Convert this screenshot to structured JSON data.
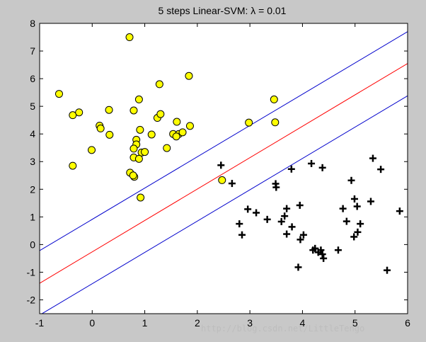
{
  "chart_data": {
    "type": "scatter",
    "title": "5 steps Linear-SVM: λ = 0.01",
    "xlabel": "",
    "ylabel": "",
    "xlim": [
      -1,
      6
    ],
    "ylim": [
      -2.5,
      8
    ],
    "x_ticks": [
      "-1",
      "0",
      "1",
      "2",
      "3",
      "4",
      "5",
      "6"
    ],
    "y_ticks": [
      "-2",
      "-1",
      "0",
      "1",
      "2",
      "3",
      "4",
      "5",
      "6",
      "7",
      "8"
    ],
    "grid": false,
    "legend": "none",
    "colors": {
      "figure_bg": "#c8c8c8",
      "axes_bg": "#ffffff",
      "circle_fill": "#ffff00",
      "circle_edge": "#000000",
      "plus": "#000000",
      "margin_line": "#0000cc",
      "decision_line": "#ff0000"
    },
    "series": [
      {
        "marker": "circle",
        "points": [
          [
            -0.63,
            5.45
          ],
          [
            -0.37,
            4.68
          ],
          [
            -0.25,
            4.78
          ],
          [
            -0.37,
            2.85
          ],
          [
            0.14,
            4.3
          ],
          [
            0.16,
            4.2
          ],
          [
            -0.01,
            3.42
          ],
          [
            0.32,
            4.87
          ],
          [
            0.33,
            3.97
          ],
          [
            0.71,
            7.5
          ],
          [
            0.79,
            4.85
          ],
          [
            0.89,
            5.25
          ],
          [
            0.84,
            3.79
          ],
          [
            0.84,
            3.62
          ],
          [
            0.79,
            3.47
          ],
          [
            0.79,
            3.15
          ],
          [
            0.94,
            3.33
          ],
          [
            1.0,
            3.35
          ],
          [
            0.89,
            3.1
          ],
          [
            0.91,
            4.15
          ],
          [
            0.72,
            2.6
          ],
          [
            0.8,
            2.45
          ],
          [
            0.78,
            2.5
          ],
          [
            0.92,
            1.7
          ],
          [
            1.13,
            3.98
          ],
          [
            1.24,
            4.58
          ],
          [
            1.3,
            4.72
          ],
          [
            1.28,
            5.8
          ],
          [
            1.42,
            3.49
          ],
          [
            1.54,
            4.0
          ],
          [
            1.65,
            4.0
          ],
          [
            1.72,
            4.06
          ],
          [
            1.6,
            3.91
          ],
          [
            1.61,
            4.44
          ],
          [
            1.86,
            4.29
          ],
          [
            1.84,
            6.1
          ],
          [
            2.47,
            2.33
          ],
          [
            2.98,
            4.41
          ],
          [
            3.46,
            5.25
          ],
          [
            3.48,
            4.42
          ]
        ]
      },
      {
        "marker": "plus",
        "points": [
          [
            2.45,
            2.87
          ],
          [
            2.66,
            2.21
          ],
          [
            2.8,
            0.75
          ],
          [
            2.85,
            0.35
          ],
          [
            2.96,
            1.28
          ],
          [
            3.12,
            1.15
          ],
          [
            3.33,
            0.91
          ],
          [
            3.49,
            2.2
          ],
          [
            3.5,
            2.07
          ],
          [
            3.6,
            0.83
          ],
          [
            3.66,
            1.03
          ],
          [
            3.7,
            1.3
          ],
          [
            3.7,
            0.38
          ],
          [
            3.79,
            2.73
          ],
          [
            3.8,
            0.64
          ],
          [
            3.92,
            -0.82
          ],
          [
            3.96,
            0.18
          ],
          [
            3.95,
            1.42
          ],
          [
            4.02,
            0.35
          ],
          [
            4.17,
            2.93
          ],
          [
            4.2,
            -0.2
          ],
          [
            4.24,
            -0.14
          ],
          [
            4.3,
            -0.28
          ],
          [
            4.35,
            -0.2
          ],
          [
            4.38,
            -0.35
          ],
          [
            4.4,
            -0.5
          ],
          [
            4.38,
            2.78
          ],
          [
            4.68,
            -0.2
          ],
          [
            4.77,
            1.3
          ],
          [
            4.84,
            0.84
          ],
          [
            4.93,
            2.32
          ],
          [
            4.99,
            1.65
          ],
          [
            4.98,
            0.28
          ],
          [
            5.04,
            1.38
          ],
          [
            5.05,
            0.45
          ],
          [
            5.1,
            0.75
          ],
          [
            5.3,
            1.56
          ],
          [
            5.34,
            3.12
          ],
          [
            5.49,
            2.72
          ],
          [
            5.61,
            -0.93
          ],
          [
            5.85,
            1.21
          ]
        ]
      }
    ],
    "lines": [
      {
        "role": "margin",
        "color": "#0000cc",
        "points": [
          [
            -1,
            -0.22
          ],
          [
            6,
            7.7
          ]
        ]
      },
      {
        "role": "decision",
        "color": "#ff0000",
        "points": [
          [
            -1,
            -1.4
          ],
          [
            6,
            6.55
          ]
        ]
      },
      {
        "role": "margin",
        "color": "#0000cc",
        "points": [
          [
            -1,
            -2.55
          ],
          [
            6,
            5.38
          ]
        ]
      }
    ],
    "watermark": "http://blog.csdn.net/LittleTengo"
  }
}
